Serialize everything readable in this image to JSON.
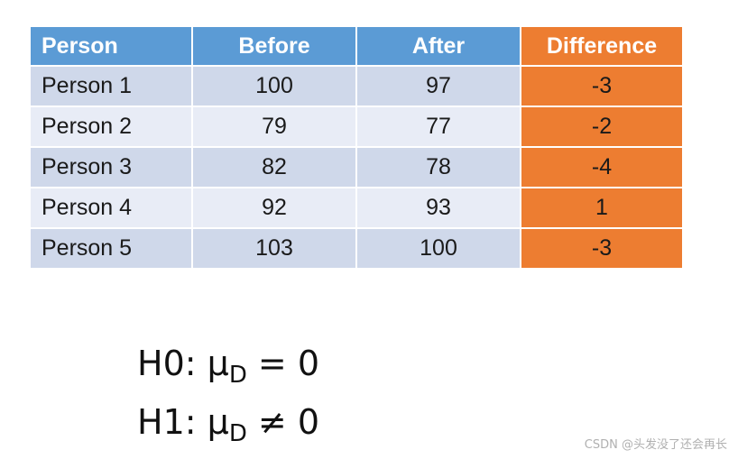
{
  "table": {
    "headers": [
      "Person",
      "Before",
      "After",
      "Difference"
    ],
    "rows": [
      [
        "Person 1",
        "100",
        "97",
        "-3"
      ],
      [
        "Person 2",
        "79",
        "77",
        "-2"
      ],
      [
        "Person 3",
        "82",
        "78",
        "-4"
      ],
      [
        "Person 4",
        "92",
        "93",
        "1"
      ],
      [
        "Person 5",
        "103",
        "100",
        "-3"
      ]
    ],
    "colors": {
      "header_blue": "#5b9bd5",
      "difference_orange": "#ed7d31",
      "row_dark": "#cfd8ea",
      "row_light": "#e8ecf6"
    }
  },
  "hypotheses": {
    "h0": {
      "label": "H0: μ",
      "subscript": "D",
      "relation": " = 0"
    },
    "h1": {
      "label": "H1: μ",
      "subscript": "D",
      "relation": " ≠ 0"
    }
  },
  "watermark": "CSDN @头发没了还会再长"
}
